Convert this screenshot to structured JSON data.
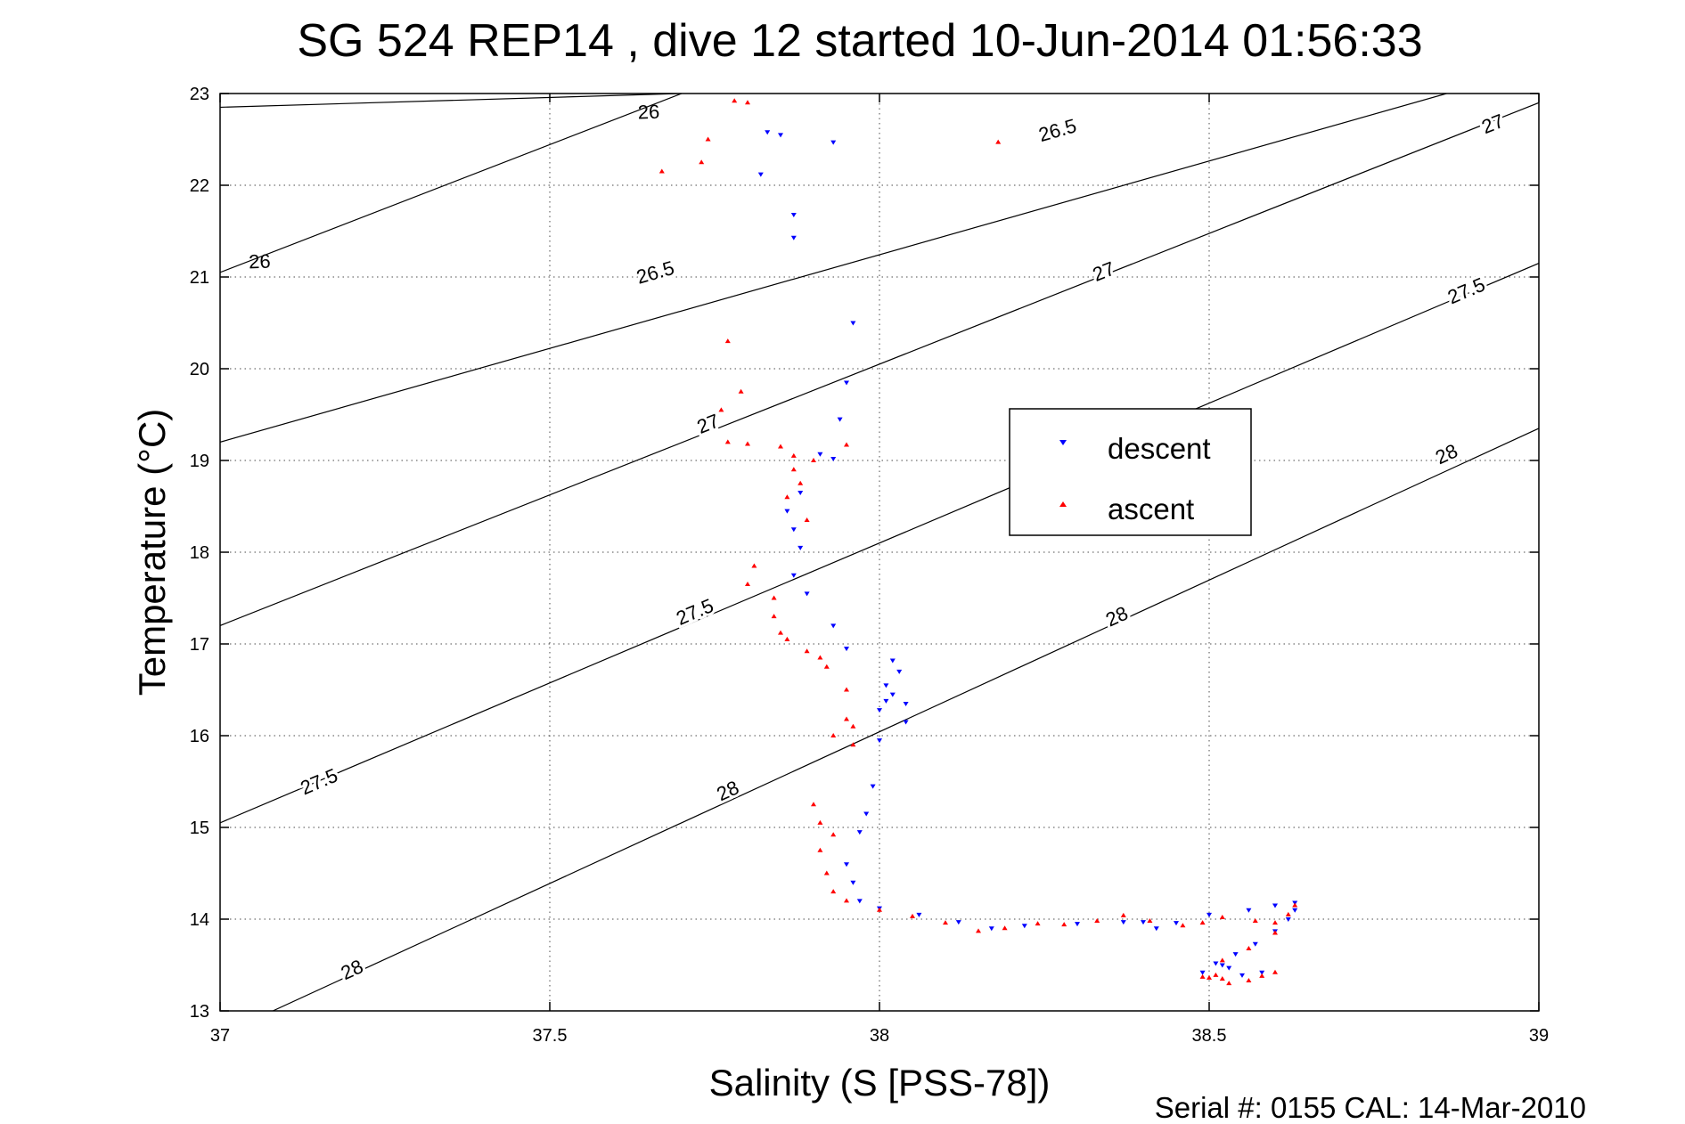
{
  "chart_data": {
    "type": "scatter",
    "title": "SG 524   REP14  , dive 12 started 10-Jun-2014 01:56:33",
    "xlabel": "Salinity (S [PSS-78])",
    "ylabel": "Temperature (°C)",
    "footer": "Serial #: 0155  CAL: 14-Mar-2010",
    "xlim": [
      37,
      39
    ],
    "ylim": [
      13,
      23
    ],
    "xticks": [
      37,
      37.5,
      38,
      38.5,
      39
    ],
    "xtick_labels": [
      "37",
      "37.5",
      "38",
      "38.5",
      "39"
    ],
    "yticks": [
      13,
      14,
      15,
      16,
      17,
      18,
      19,
      20,
      21,
      22,
      23
    ],
    "ytick_labels": [
      "13",
      "14",
      "15",
      "16",
      "17",
      "18",
      "19",
      "20",
      "21",
      "22",
      "23"
    ],
    "grid": true,
    "legend": {
      "position": "center-right"
    },
    "series": [
      {
        "name": "descent",
        "color": "#0000ff",
        "marker": "triangle-down",
        "points": [
          [
            37.83,
            22.58
          ],
          [
            37.85,
            22.55
          ],
          [
            37.93,
            22.47
          ],
          [
            37.82,
            22.12
          ],
          [
            37.87,
            21.68
          ],
          [
            37.87,
            21.43
          ],
          [
            37.96,
            20.5
          ],
          [
            37.95,
            19.85
          ],
          [
            37.94,
            19.45
          ],
          [
            37.91,
            19.07
          ],
          [
            37.93,
            19.02
          ],
          [
            37.88,
            18.65
          ],
          [
            37.86,
            18.45
          ],
          [
            37.87,
            18.25
          ],
          [
            37.88,
            18.05
          ],
          [
            37.87,
            17.75
          ],
          [
            37.89,
            17.55
          ],
          [
            37.93,
            17.2
          ],
          [
            37.95,
            16.95
          ],
          [
            38.02,
            16.82
          ],
          [
            38.03,
            16.7
          ],
          [
            38.01,
            16.55
          ],
          [
            38.02,
            16.45
          ],
          [
            38.01,
            16.38
          ],
          [
            38.04,
            16.35
          ],
          [
            38.0,
            16.28
          ],
          [
            38.04,
            16.15
          ],
          [
            38.0,
            15.95
          ],
          [
            37.99,
            15.45
          ],
          [
            37.98,
            15.15
          ],
          [
            37.97,
            14.95
          ],
          [
            37.95,
            14.6
          ],
          [
            37.96,
            14.4
          ],
          [
            37.97,
            14.2
          ],
          [
            38.0,
            14.12
          ],
          [
            38.06,
            14.05
          ],
          [
            38.12,
            13.97
          ],
          [
            38.17,
            13.9
          ],
          [
            38.22,
            13.93
          ],
          [
            38.3,
            13.95
          ],
          [
            38.37,
            13.97
          ],
          [
            38.4,
            13.97
          ],
          [
            38.42,
            13.9
          ],
          [
            38.45,
            13.96
          ],
          [
            38.5,
            14.05
          ],
          [
            38.56,
            14.1
          ],
          [
            38.6,
            14.15
          ],
          [
            38.63,
            14.18
          ],
          [
            38.63,
            14.1
          ],
          [
            38.62,
            14.0
          ],
          [
            38.6,
            13.87
          ],
          [
            38.57,
            13.73
          ],
          [
            38.54,
            13.62
          ],
          [
            38.52,
            13.5
          ],
          [
            38.49,
            13.42
          ],
          [
            38.53,
            13.47
          ],
          [
            38.55,
            13.39
          ],
          [
            38.58,
            13.42
          ],
          [
            38.51,
            13.52
          ]
        ]
      },
      {
        "name": "ascent",
        "color": "#ff0000",
        "marker": "triangle-up",
        "points": [
          [
            37.78,
            22.92
          ],
          [
            37.8,
            22.9
          ],
          [
            37.74,
            22.5
          ],
          [
            37.73,
            22.25
          ],
          [
            37.67,
            22.15
          ],
          [
            38.18,
            22.47
          ],
          [
            37.77,
            20.3
          ],
          [
            37.79,
            19.75
          ],
          [
            37.76,
            19.55
          ],
          [
            37.77,
            19.2
          ],
          [
            37.8,
            19.18
          ],
          [
            37.85,
            19.15
          ],
          [
            37.87,
            19.05
          ],
          [
            37.9,
            19.0
          ],
          [
            37.95,
            19.17
          ],
          [
            37.87,
            18.9
          ],
          [
            37.88,
            18.75
          ],
          [
            37.86,
            18.6
          ],
          [
            37.89,
            18.35
          ],
          [
            37.81,
            17.85
          ],
          [
            37.8,
            17.65
          ],
          [
            37.84,
            17.5
          ],
          [
            37.84,
            17.3
          ],
          [
            37.85,
            17.12
          ],
          [
            37.86,
            17.05
          ],
          [
            37.89,
            16.92
          ],
          [
            37.91,
            16.85
          ],
          [
            37.92,
            16.75
          ],
          [
            37.95,
            16.5
          ],
          [
            37.95,
            16.18
          ],
          [
            37.96,
            16.1
          ],
          [
            37.93,
            16.0
          ],
          [
            37.96,
            15.9
          ],
          [
            37.9,
            15.25
          ],
          [
            37.91,
            15.05
          ],
          [
            37.93,
            14.92
          ],
          [
            37.91,
            14.75
          ],
          [
            37.92,
            14.5
          ],
          [
            37.93,
            14.3
          ],
          [
            37.95,
            14.2
          ],
          [
            38.0,
            14.1
          ],
          [
            38.05,
            14.03
          ],
          [
            38.1,
            13.96
          ],
          [
            38.15,
            13.87
          ],
          [
            38.19,
            13.9
          ],
          [
            38.24,
            13.95
          ],
          [
            38.28,
            13.94
          ],
          [
            38.33,
            13.98
          ],
          [
            38.37,
            14.04
          ],
          [
            38.41,
            13.98
          ],
          [
            38.46,
            13.93
          ],
          [
            38.49,
            13.96
          ],
          [
            38.52,
            14.02
          ],
          [
            38.57,
            13.98
          ],
          [
            38.6,
            13.96
          ],
          [
            38.62,
            14.05
          ],
          [
            38.63,
            14.15
          ],
          [
            38.6,
            13.85
          ],
          [
            38.56,
            13.68
          ],
          [
            38.52,
            13.55
          ],
          [
            38.49,
            13.37
          ],
          [
            38.52,
            13.35
          ],
          [
            38.53,
            13.3
          ],
          [
            38.56,
            13.33
          ],
          [
            38.58,
            13.38
          ],
          [
            38.6,
            13.42
          ],
          [
            38.5,
            13.36
          ],
          [
            38.51,
            13.39
          ]
        ]
      }
    ],
    "contours": [
      {
        "label": "26",
        "color": "#000000",
        "line": [
          [
            37.0,
            22.85
          ],
          [
            37.7,
            23.0
          ]
        ],
        "labels_at": [
          [
            37.65,
            22.8
          ],
          [
            37.06,
            21.17
          ]
        ]
      },
      {
        "label": "26",
        "color": "#000000",
        "line": [
          [
            37.0,
            21.05
          ],
          [
            37.7,
            23.0
          ]
        ],
        "labels_at": []
      },
      {
        "label": "26.5",
        "color": "#000000",
        "line": [
          [
            37.0,
            19.2
          ],
          [
            38.86,
            23.0
          ]
        ],
        "labels_at": [
          [
            38.27,
            22.6
          ],
          [
            37.66,
            21.05
          ]
        ]
      },
      {
        "label": "27",
        "color": "#000000",
        "line": [
          [
            37.0,
            17.2
          ],
          [
            39.0,
            22.9
          ]
        ],
        "labels_at": [
          [
            38.93,
            22.67
          ],
          [
            38.34,
            21.06
          ],
          [
            37.74,
            19.4
          ]
        ]
      },
      {
        "label": "27.5",
        "color": "#000000",
        "line": [
          [
            37.0,
            15.05
          ],
          [
            39.0,
            21.15
          ]
        ],
        "labels_at": [
          [
            38.89,
            20.85
          ],
          [
            37.72,
            17.35
          ],
          [
            37.15,
            15.5
          ]
        ]
      },
      {
        "label": "28",
        "color": "#000000",
        "line": [
          [
            37.08,
            13.0
          ],
          [
            39.0,
            19.35
          ]
        ],
        "labels_at": [
          [
            38.86,
            19.07
          ],
          [
            38.36,
            17.3
          ],
          [
            37.77,
            15.4
          ],
          [
            37.2,
            13.45
          ]
        ]
      }
    ]
  }
}
